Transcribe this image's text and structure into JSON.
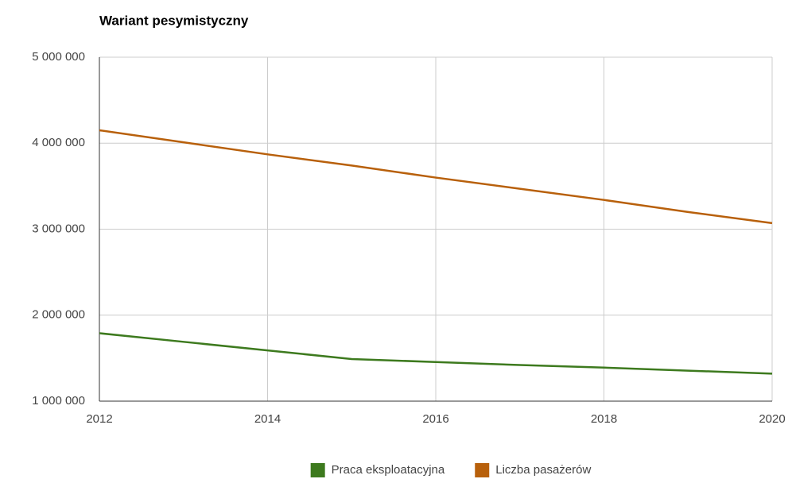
{
  "chart_data": {
    "type": "line",
    "title": "Wariant pesymistyczny",
    "x": [
      2012,
      2013,
      2014,
      2015,
      2016,
      2017,
      2018,
      2019,
      2020
    ],
    "series": [
      {
        "name": "Praca eksploatacyjna",
        "color": "#3d7a1e",
        "values": [
          1790000,
          1690000,
          1590000,
          1490000,
          1455000,
          1420000,
          1390000,
          1355000,
          1320000
        ]
      },
      {
        "name": "Liczba pasażerów",
        "color": "#b8600b",
        "values": [
          4150000,
          4010000,
          3870000,
          3740000,
          3600000,
          3470000,
          3340000,
          3200000,
          3070000
        ]
      }
    ],
    "xlim": [
      2012,
      2020
    ],
    "xticks": [
      2012,
      2014,
      2016,
      2018,
      2020
    ],
    "ylim": [
      1000000,
      5000000
    ],
    "yticks": [
      {
        "value": 1000000,
        "label": "1 000 000"
      },
      {
        "value": 2000000,
        "label": "2 000 000"
      },
      {
        "value": 3000000,
        "label": "3 000 000"
      },
      {
        "value": 4000000,
        "label": "4 000 000"
      },
      {
        "value": 5000000,
        "label": "5 000 000"
      }
    ],
    "grid": true,
    "legend": "bottom"
  }
}
